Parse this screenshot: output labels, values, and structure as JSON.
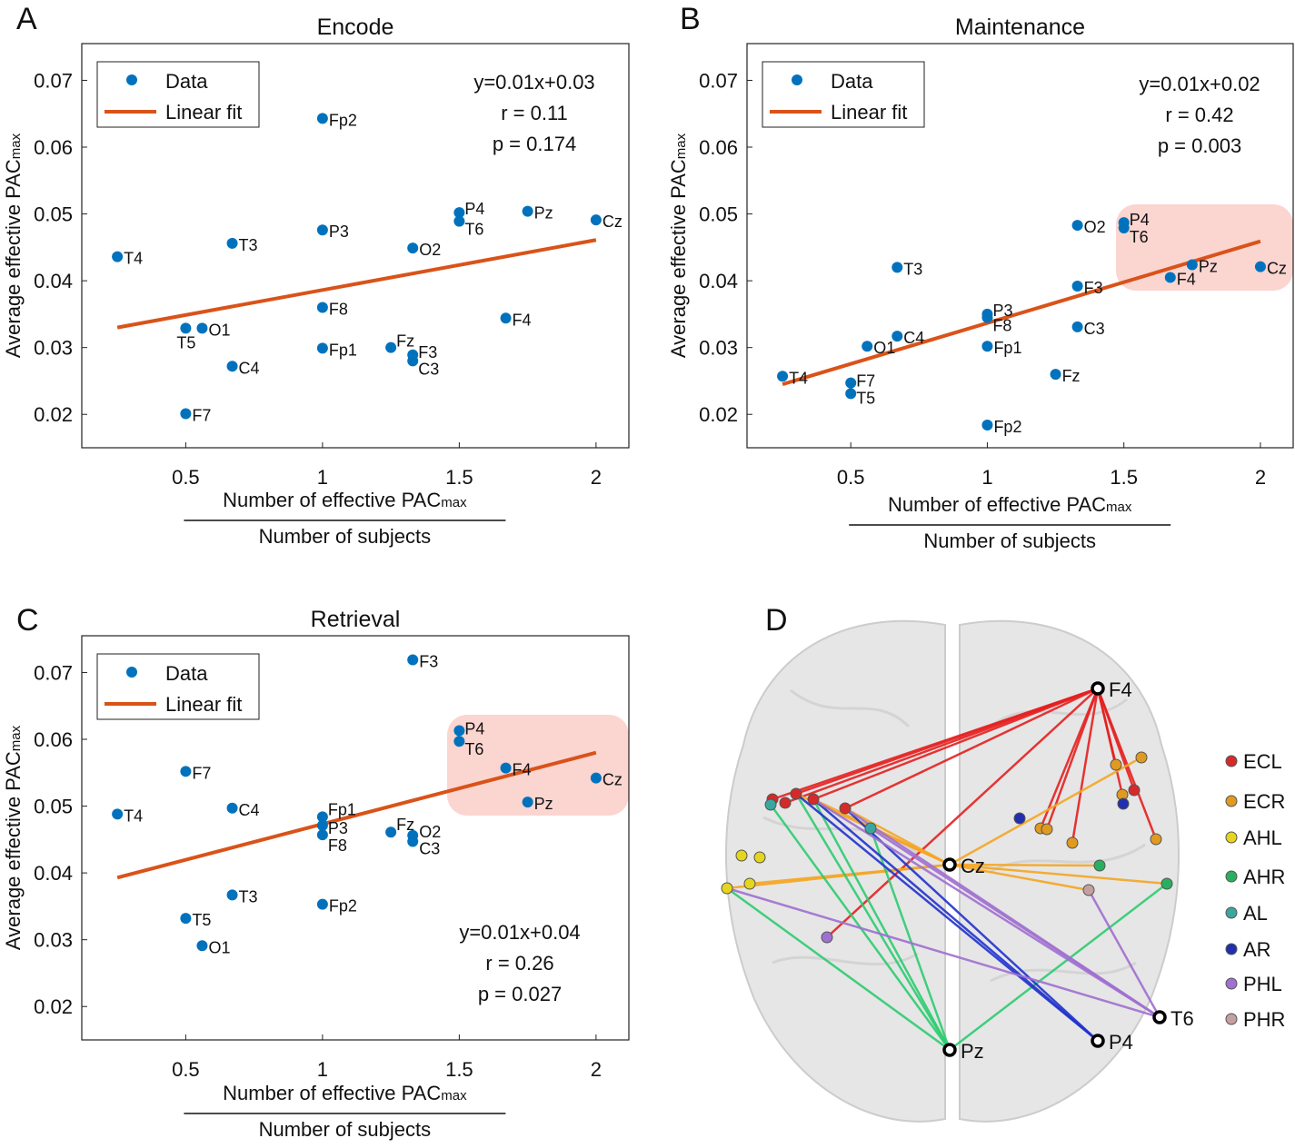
{
  "chart_data": [
    {
      "type": "scatter",
      "panel": "A",
      "title": "Encode",
      "xlim": [
        0.12,
        2.12
      ],
      "ylim": [
        0.015,
        0.0755
      ],
      "xticks": [
        0.5,
        1,
        1.5,
        2
      ],
      "yticks": [
        0.02,
        0.03,
        0.04,
        0.05,
        0.06,
        0.07
      ],
      "ylabel": [
        "Average effective PAC",
        "max"
      ],
      "xlabel": {
        "numerator": [
          "Number of effective PAC",
          "max"
        ],
        "denominator": "Number of subjects"
      },
      "legend": "upper left",
      "series": [
        {
          "name": "Data",
          "color": "#0072bd",
          "labels": [
            "T4",
            "T5",
            "O1",
            "F7",
            "C4",
            "T3",
            "Fp2",
            "P3",
            "F8",
            "Fp1",
            "Fz",
            "F3",
            "C3",
            "O2",
            "P4",
            "T6",
            "Pz",
            "F4",
            "Cz"
          ],
          "x": [
            0.25,
            0.5,
            0.56,
            0.5,
            0.67,
            0.67,
            1,
            1,
            1,
            1,
            1.25,
            1.33,
            1.33,
            1.33,
            1.5,
            1.5,
            1.75,
            1.67,
            2
          ],
          "values": [
            0.0436,
            0.0329,
            0.0329,
            0.0201,
            0.0272,
            0.0456,
            0.0643,
            0.0476,
            0.036,
            0.0299,
            0.03,
            0.0289,
            0.028,
            0.0449,
            0.0502,
            0.0489,
            0.0504,
            0.0344,
            0.0491
          ]
        },
        {
          "name": "Linear fit",
          "color": "#d95319",
          "x": [
            0.25,
            2
          ],
          "values": [
            0.033,
            0.0461
          ]
        }
      ],
      "annotations": [
        "y=0.01x+0.03",
        "r = 0.11",
        "p = 0.174"
      ]
    },
    {
      "type": "scatter",
      "panel": "B",
      "title": "Maintenance",
      "xlim": [
        0.12,
        2.12
      ],
      "ylim": [
        0.015,
        0.0755
      ],
      "xticks": [
        0.5,
        1,
        1.5,
        2
      ],
      "yticks": [
        0.02,
        0.03,
        0.04,
        0.05,
        0.06,
        0.07
      ],
      "ylabel": [
        "Average effective PAC",
        "max"
      ],
      "xlabel": {
        "numerator": [
          "Number of effective PAC",
          "max"
        ],
        "denominator": "Number of subjects"
      },
      "legend": "upper left",
      "series": [
        {
          "name": "Data",
          "color": "#0072bd",
          "labels": [
            "T4",
            "F7",
            "T5",
            "O1",
            "C4",
            "T3",
            "P3",
            "F8",
            "Fp1",
            "Fp2",
            "Fz",
            "O2",
            "F3",
            "C3",
            "P4",
            "T6",
            "F4",
            "Pz",
            "Cz"
          ],
          "x": [
            0.25,
            0.5,
            0.5,
            0.56,
            0.67,
            0.67,
            1,
            1,
            1,
            1,
            1.25,
            1.33,
            1.33,
            1.33,
            1.5,
            1.5,
            1.67,
            1.75,
            2
          ],
          "values": [
            0.0257,
            0.0247,
            0.0231,
            0.0302,
            0.0317,
            0.042,
            0.035,
            0.0345,
            0.0302,
            0.0184,
            0.026,
            0.0483,
            0.0392,
            0.0331,
            0.0487,
            0.0479,
            0.0405,
            0.0424,
            0.0421
          ]
        },
        {
          "name": "Linear fit",
          "color": "#d95319",
          "x": [
            0.25,
            2
          ],
          "values": [
            0.0245,
            0.0459
          ]
        }
      ],
      "annotations": [
        "y=0.01x+0.02",
        "r = 0.42",
        "p = 0.003"
      ]
    },
    {
      "type": "scatter",
      "panel": "C",
      "title": "Retrieval",
      "xlim": [
        0.12,
        2.12
      ],
      "ylim": [
        0.015,
        0.0755
      ],
      "xticks": [
        0.5,
        1,
        1.5,
        2
      ],
      "yticks": [
        0.02,
        0.03,
        0.04,
        0.05,
        0.06,
        0.07
      ],
      "ylabel": [
        "Average effective PAC",
        "max"
      ],
      "xlabel": {
        "numerator": [
          "Number of effective PAC",
          "max"
        ],
        "denominator": "Number of subjects"
      },
      "legend": "upper left",
      "series": [
        {
          "name": "Data",
          "color": "#0072bd",
          "labels": [
            "F3",
            "P4",
            "T6",
            "F7",
            "F4",
            "Cz",
            "Pz",
            "C4",
            "T4",
            "Fp1",
            "P3",
            "F8",
            "Fz",
            "O2",
            "C3",
            "T3",
            "Fp2",
            "T5",
            "O1"
          ],
          "x": [
            1.33,
            1.5,
            1.5,
            0.5,
            1.67,
            2,
            1.75,
            0.67,
            0.25,
            1,
            1,
            1,
            1.25,
            1.33,
            1.33,
            0.67,
            1,
            0.5,
            0.56
          ],
          "values": [
            0.0719,
            0.0613,
            0.0597,
            0.0552,
            0.0557,
            0.0542,
            0.0506,
            0.0497,
            0.0488,
            0.0484,
            0.0471,
            0.0457,
            0.0461,
            0.0456,
            0.0447,
            0.0367,
            0.0353,
            0.0332,
            0.0291
          ]
        },
        {
          "name": "Linear fit",
          "color": "#d95319",
          "x": [
            0.25,
            2
          ],
          "values": [
            0.0393,
            0.058
          ]
        }
      ],
      "annotations": [
        "y=0.01x+0.04",
        "r = 0.26",
        "p = 0.027"
      ]
    }
  ],
  "diagram": {
    "panel": "D",
    "electrodes": [
      "F4",
      "Cz",
      "T6",
      "P4",
      "Pz"
    ],
    "legend": [
      {
        "name": "ECL",
        "color": "#d42a2a"
      },
      {
        "name": "ECR",
        "color": "#e09a20"
      },
      {
        "name": "AHL",
        "color": "#e6d51e"
      },
      {
        "name": "AHR",
        "color": "#28b060"
      },
      {
        "name": "AL",
        "color": "#3aa6a0"
      },
      {
        "name": "AR",
        "color": "#1f2fb0"
      },
      {
        "name": "PHL",
        "color": "#a070d0"
      },
      {
        "name": "PHR",
        "color": "#c4a0a0"
      }
    ]
  }
}
